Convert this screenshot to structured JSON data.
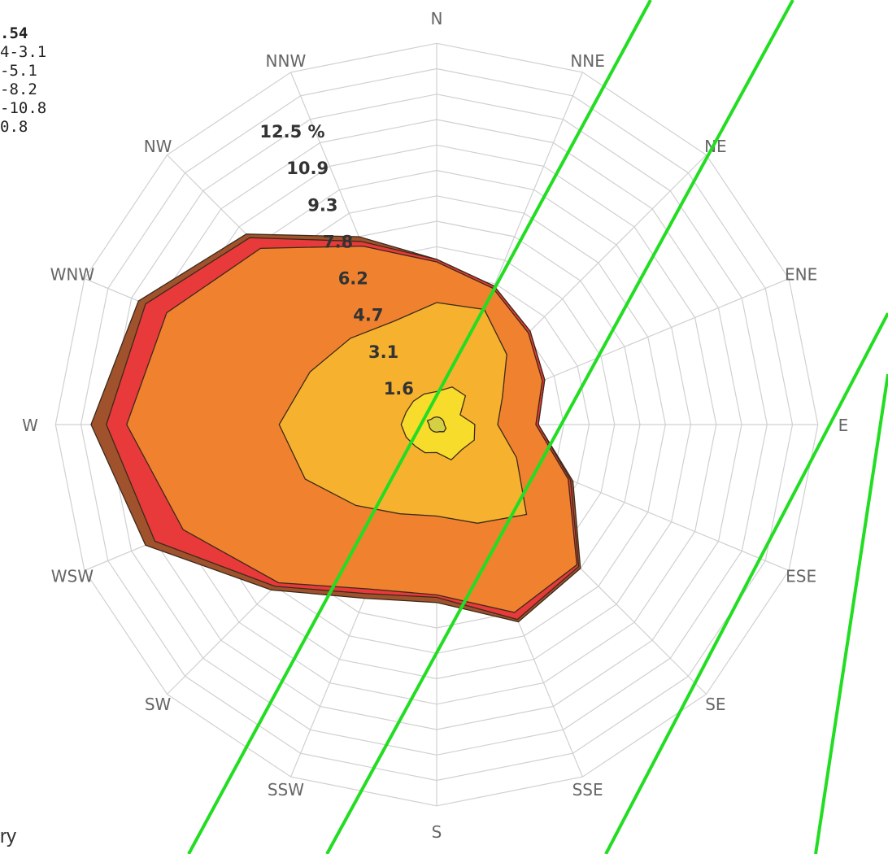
{
  "chart_data": {
    "type": "radar",
    "title": "",
    "directions": [
      "N",
      "NNE",
      "NE",
      "ENE",
      "E",
      "ESE",
      "SE",
      "SSE",
      "S",
      "SSW",
      "SW",
      "WSW",
      "W",
      "WNW",
      "NW",
      "NNW"
    ],
    "radial_unit": "%",
    "ring_labels": [
      "1.6",
      "3.1",
      "4.7",
      "6.2",
      "7.8",
      "9.3",
      "10.9",
      "12.5 %"
    ],
    "radial_max": 15,
    "legend_fragments": [
      ".54",
      "4-3.1",
      "-5.1",
      "-8.2",
      "-10.8",
      "0.8"
    ],
    "series": [
      {
        "name": "",
        "color": "#a0522d",
        "values": [
          6.5,
          5.9,
          5.2,
          4.6,
          4.0,
          5.8,
          8.0,
          8.4,
          7.0,
          7.4,
          9.2,
          12.4,
          13.6,
          12.7,
          10.6,
          8.0
        ]
      },
      {
        "name": "",
        "color": "#e8393b",
        "values": [
          6.5,
          5.9,
          5.2,
          4.6,
          4.0,
          5.7,
          7.9,
          8.3,
          6.8,
          7.2,
          9.0,
          12.0,
          13.0,
          12.4,
          10.4,
          7.8
        ]
      },
      {
        "name": "",
        "color": "#f0822f",
        "values": [
          6.4,
          5.8,
          5.1,
          4.5,
          3.9,
          5.6,
          7.8,
          8.0,
          6.7,
          7.0,
          8.8,
          10.8,
          12.2,
          11.5,
          9.8,
          7.6
        ]
      },
      {
        "name": "",
        "color": "#f6b22f",
        "values": [
          4.8,
          4.9,
          3.9,
          2.8,
          2.4,
          3.4,
          5.0,
          4.2,
          3.6,
          3.8,
          4.5,
          5.6,
          6.2,
          5.4,
          4.8,
          4.4
        ]
      },
      {
        "name": "",
        "color": "#f8dc2c",
        "values": [
          1.3,
          1.6,
          1.6,
          1.0,
          1.5,
          1.6,
          1.4,
          1.5,
          1.1,
          1.2,
          1.2,
          1.3,
          1.4,
          1.3,
          1.3,
          1.3
        ]
      },
      {
        "name": "",
        "color": "#d4d044",
        "values": [
          0.3,
          0.3,
          0.3,
          0.3,
          0.3,
          0.4,
          0.4,
          0.3,
          0.3,
          0.3,
          0.3,
          0.3,
          0.3,
          0.4,
          0.3,
          0.3
        ]
      }
    ]
  },
  "fragment_text": "ry"
}
